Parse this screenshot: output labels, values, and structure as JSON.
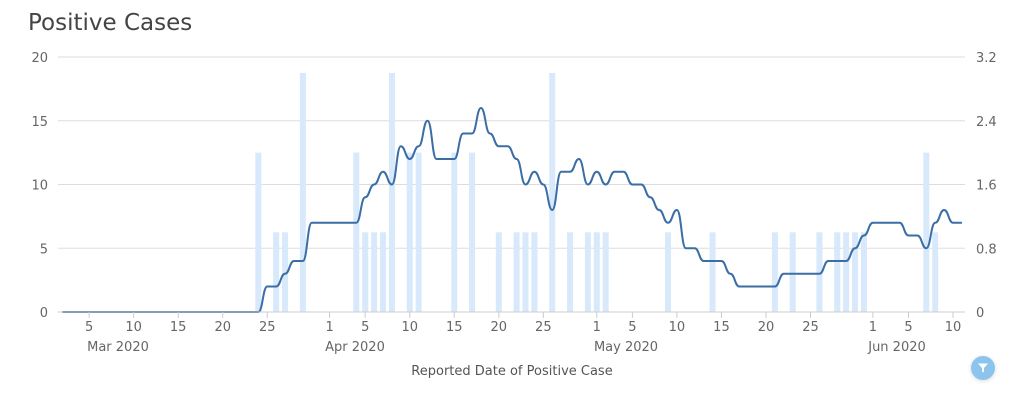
{
  "title": "Positive Cases",
  "colors": {
    "line": "#3a6ea5",
    "bar": "#d7e9fb",
    "grid": "#dddddd",
    "filter_button": "#8cc4ee"
  },
  "filter_icon": "filter-icon",
  "chart_data": {
    "type": "bar+line",
    "xlabel": "Reported Date of Positive Case",
    "x_tick_labels": [
      "5",
      "10",
      "15",
      "20",
      "25",
      "1",
      "5",
      "10",
      "15",
      "20",
      "25",
      "1",
      "5",
      "10",
      "15",
      "20",
      "25",
      "1",
      "5",
      "10"
    ],
    "x_tick_dates": [
      "2020-03-05",
      "2020-03-10",
      "2020-03-15",
      "2020-03-20",
      "2020-03-25",
      "2020-04-01",
      "2020-04-05",
      "2020-04-10",
      "2020-04-15",
      "2020-04-20",
      "2020-04-25",
      "2020-05-01",
      "2020-05-05",
      "2020-05-10",
      "2020-05-15",
      "2020-05-20",
      "2020-05-25",
      "2020-06-01",
      "2020-06-05",
      "2020-06-10"
    ],
    "month_labels": [
      "Mar 2020",
      "Apr 2020",
      "May 2020",
      "Jun 2020"
    ],
    "left_axis": {
      "range": [
        0,
        20
      ],
      "ticks": [
        "0",
        "5",
        "10",
        "15",
        "20"
      ]
    },
    "right_axis": {
      "range": [
        0,
        3.2
      ],
      "ticks": [
        "0",
        "0.8",
        "1.6",
        "2.4",
        "3.2"
      ]
    },
    "grid": true,
    "bars": {
      "axis": "right",
      "points": [
        [
          "2020-03-24",
          2
        ],
        [
          "2020-03-26",
          1
        ],
        [
          "2020-03-27",
          1
        ],
        [
          "2020-03-29",
          3
        ],
        [
          "2020-04-04",
          2
        ],
        [
          "2020-04-05",
          1
        ],
        [
          "2020-04-06",
          1
        ],
        [
          "2020-04-07",
          1
        ],
        [
          "2020-04-08",
          3
        ],
        [
          "2020-04-10",
          2
        ],
        [
          "2020-04-11",
          2
        ],
        [
          "2020-04-15",
          2
        ],
        [
          "2020-04-17",
          2
        ],
        [
          "2020-04-20",
          1
        ],
        [
          "2020-04-22",
          1
        ],
        [
          "2020-04-23",
          1
        ],
        [
          "2020-04-24",
          1
        ],
        [
          "2020-04-26",
          3
        ],
        [
          "2020-04-28",
          1
        ],
        [
          "2020-04-30",
          1
        ],
        [
          "2020-05-01",
          1
        ],
        [
          "2020-05-02",
          1
        ],
        [
          "2020-05-09",
          1
        ],
        [
          "2020-05-14",
          1
        ],
        [
          "2020-05-21",
          1
        ],
        [
          "2020-05-23",
          1
        ],
        [
          "2020-05-26",
          1
        ],
        [
          "2020-05-28",
          1
        ],
        [
          "2020-05-29",
          1
        ],
        [
          "2020-05-30",
          1
        ],
        [
          "2020-05-31",
          1
        ],
        [
          "2020-06-07",
          2
        ],
        [
          "2020-06-08",
          1
        ]
      ]
    },
    "line": {
      "axis": "left",
      "points": [
        [
          "2020-03-02",
          0
        ],
        [
          "2020-03-24",
          0
        ],
        [
          "2020-03-25",
          2
        ],
        [
          "2020-03-26",
          2
        ],
        [
          "2020-03-27",
          3
        ],
        [
          "2020-03-28",
          4
        ],
        [
          "2020-03-29",
          4
        ],
        [
          "2020-03-30",
          7
        ],
        [
          "2020-04-04",
          7
        ],
        [
          "2020-04-05",
          9
        ],
        [
          "2020-04-06",
          10
        ],
        [
          "2020-04-07",
          11
        ],
        [
          "2020-04-08",
          10
        ],
        [
          "2020-04-09",
          13
        ],
        [
          "2020-04-10",
          12
        ],
        [
          "2020-04-11",
          13
        ],
        [
          "2020-04-12",
          15
        ],
        [
          "2020-04-13",
          12
        ],
        [
          "2020-04-15",
          12
        ],
        [
          "2020-04-16",
          14
        ],
        [
          "2020-04-17",
          14
        ],
        [
          "2020-04-18",
          16
        ],
        [
          "2020-04-19",
          14
        ],
        [
          "2020-04-20",
          13
        ],
        [
          "2020-04-21",
          13
        ],
        [
          "2020-04-22",
          12
        ],
        [
          "2020-04-23",
          10
        ],
        [
          "2020-04-24",
          11
        ],
        [
          "2020-04-25",
          10
        ],
        [
          "2020-04-26",
          8
        ],
        [
          "2020-04-27",
          11
        ],
        [
          "2020-04-28",
          11
        ],
        [
          "2020-04-29",
          12
        ],
        [
          "2020-04-30",
          10
        ],
        [
          "2020-05-01",
          11
        ],
        [
          "2020-05-02",
          10
        ],
        [
          "2020-05-03",
          11
        ],
        [
          "2020-05-04",
          11
        ],
        [
          "2020-05-05",
          10
        ],
        [
          "2020-05-06",
          10
        ],
        [
          "2020-05-07",
          9
        ],
        [
          "2020-05-08",
          8
        ],
        [
          "2020-05-09",
          7
        ],
        [
          "2020-05-10",
          8
        ],
        [
          "2020-05-11",
          5
        ],
        [
          "2020-05-12",
          5
        ],
        [
          "2020-05-13",
          4
        ],
        [
          "2020-05-15",
          4
        ],
        [
          "2020-05-16",
          3
        ],
        [
          "2020-05-17",
          2
        ],
        [
          "2020-05-21",
          2
        ],
        [
          "2020-05-22",
          3
        ],
        [
          "2020-05-26",
          3
        ],
        [
          "2020-05-27",
          4
        ],
        [
          "2020-05-29",
          4
        ],
        [
          "2020-05-30",
          5
        ],
        [
          "2020-05-31",
          6
        ],
        [
          "2020-06-01",
          7
        ],
        [
          "2020-06-04",
          7
        ],
        [
          "2020-06-05",
          6
        ],
        [
          "2020-06-06",
          6
        ],
        [
          "2020-06-07",
          5
        ],
        [
          "2020-06-08",
          7
        ],
        [
          "2020-06-09",
          8
        ],
        [
          "2020-06-10",
          7
        ],
        [
          "2020-06-11",
          7
        ]
      ]
    }
  }
}
